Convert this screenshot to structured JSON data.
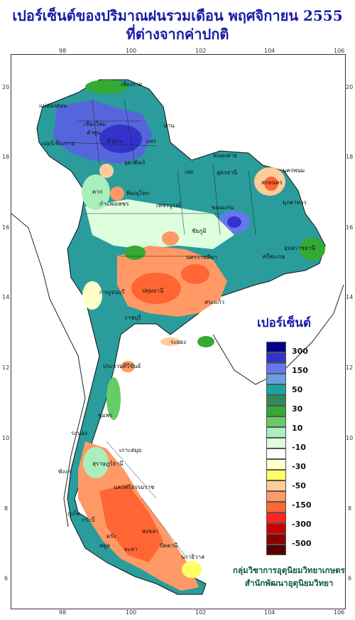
{
  "title_line1": "เปอร์เซ็นต์ของปริมาณฝนรวมเดือน  พฤศจิกายน 2555",
  "title_line2": "ที่ต่างจากค่าปกติ",
  "axis": {
    "x_ticks": [
      "98",
      "100",
      "102",
      "104",
      "106"
    ],
    "y_ticks": [
      "20",
      "18",
      "16",
      "14",
      "12",
      "10",
      "8",
      "6"
    ]
  },
  "legend": {
    "title": "เปอร์เซ็นต์",
    "colors": [
      "#00008b",
      "#3333cc",
      "#6677ee",
      "#6b9fe0",
      "#1aa3a3",
      "#2e8b57",
      "#33aa33",
      "#66cc66",
      "#aaeebb",
      "#ddffdd",
      "#ffffff",
      "#ffffcc",
      "#ffff66",
      "#ffcc99",
      "#ff9966",
      "#ff6633",
      "#ff2222",
      "#cc0000",
      "#8b0000",
      "#5a0000"
    ],
    "labels": [
      "300",
      "150",
      "50",
      "30",
      "10",
      "-10",
      "-30",
      "-50",
      "-150",
      "-300",
      "-500"
    ]
  },
  "places": [
    "เชียงราย",
    "เปอร์เชียงราย",
    "แม่ฮ่องสอน",
    "เชียงใหม่",
    "ลำพูน",
    "น่าน",
    "แพร่",
    "ลำปาง",
    "อุตรดิตถ์",
    "หนองคาย",
    "เลย",
    "อุดรธานี",
    "นครพนม",
    "สกลนคร",
    "มุกดาหาร",
    "ตาก",
    "พิษณุโลก",
    "เพชรบูรณ์",
    "กำแพงเพชร",
    "ขอนแก่น",
    "ชัยภูมิ",
    "อุบลราชธานี",
    "ศรีสะเกษ",
    "นครราชสีมา",
    "กาญจนบุรี",
    "ปทุมธานี",
    "สระแก้ว",
    "ราชบุรี",
    "ระยอง",
    "ประจวบคีรีขันธ์",
    "ชุมพร",
    "ระนอง",
    "สุราษฎร์ธานี",
    "เกาะสมุย",
    "พังงา",
    "ภูเก็ต",
    "กระบี่",
    "นครศรีธรรมราช",
    "สงขลา",
    "ยะลา",
    "นราธิวาส",
    "ปัตตานี",
    "ตรัง",
    "สตูล"
  ],
  "credit_line1": "กลุ่มวิชาการอุตุนิยมวิทยาเกษตร",
  "credit_line2": "สำนักพัฒนาอุตุนิยมวิทยา"
}
